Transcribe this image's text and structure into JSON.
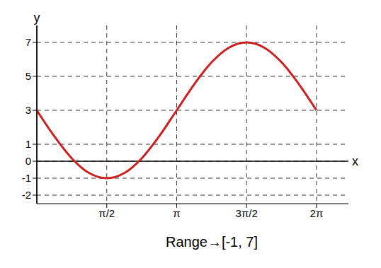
{
  "chart_data": {
    "type": "line",
    "x_label": "x",
    "y_label": "y",
    "annotation": "Range→[-1, 7]",
    "x": [
      0,
      0.3927,
      0.7854,
      1.1781,
      1.5708,
      1.9635,
      2.3562,
      2.7489,
      3.1416,
      3.5343,
      3.927,
      4.3197,
      4.7124,
      5.1051,
      5.4978,
      5.8905,
      6.2832
    ],
    "values": [
      3,
      1.47,
      0.17,
      -0.7,
      -1,
      -0.7,
      0.17,
      1.47,
      3,
      4.53,
      5.83,
      6.7,
      7,
      6.7,
      5.83,
      4.53,
      3
    ],
    "color": "#cc1f1f",
    "xlim": [
      0,
      7
    ],
    "xticks": [
      {
        "value": 1.5708,
        "label": "π/2"
      },
      {
        "value": 3.1416,
        "label": "π"
      },
      {
        "value": 4.7124,
        "label": "3π/2"
      },
      {
        "value": 6.2832,
        "label": "2π"
      }
    ],
    "ylim": [
      -2.5,
      8
    ],
    "yticks": [
      -2,
      -1,
      0,
      1,
      3,
      5,
      7
    ],
    "grid": true
  }
}
